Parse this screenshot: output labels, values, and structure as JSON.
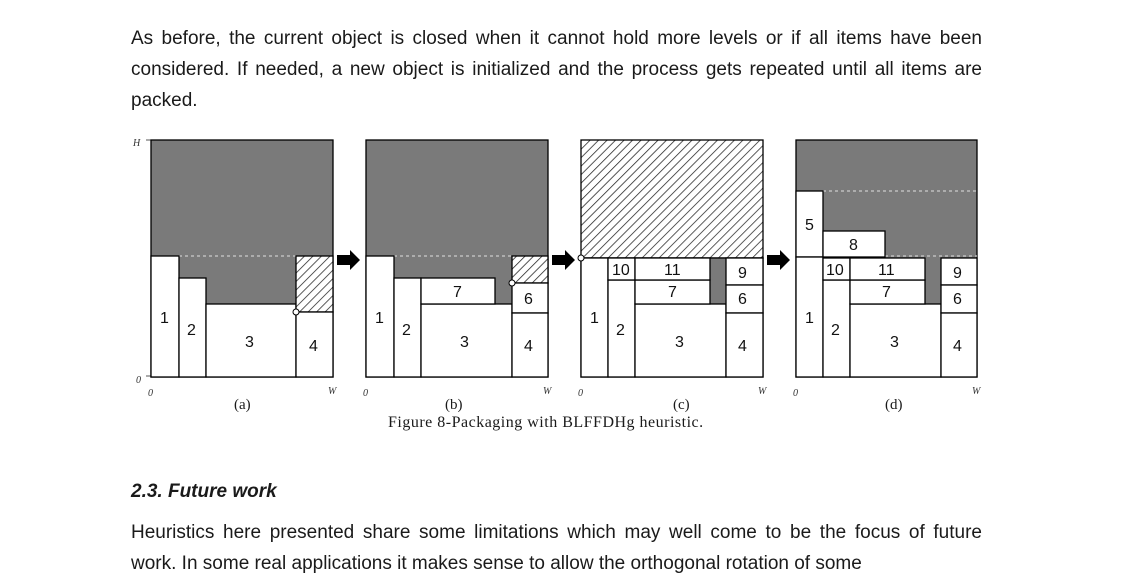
{
  "text": {
    "para1": "As before, the current object is closed when it cannot hold more levels or if all items have been considered. If needed, a new object is initialized and the process gets repeated until all items are packed.",
    "heading": "2.3. Future work",
    "para2": "Heuristics here presented share some limitations which may well come to be the focus of future work. In some real applications it makes sense to allow the orthogonal rotation of some"
  },
  "figure": {
    "caption": "Figure 8-Packaging with BLFFDHg heuristic.",
    "sublabels": [
      "(a)",
      "(b)",
      "(c)",
      "(d)"
    ],
    "axis": {
      "H": "H",
      "zero": "0",
      "W": "W"
    },
    "items": {
      "a": [
        "1",
        "2",
        "3",
        "4"
      ],
      "b": [
        "1",
        "2",
        "3",
        "4",
        "7",
        "6"
      ],
      "c": [
        "1",
        "2",
        "3",
        "4",
        "7",
        "6",
        "10",
        "11",
        "9"
      ],
      "d": [
        "1",
        "2",
        "3",
        "4",
        "7",
        "6",
        "10",
        "11",
        "9",
        "5",
        "8"
      ]
    },
    "colors": {
      "filled": "#7a7a7a",
      "item": "#ffffff",
      "outline": "#000000"
    }
  }
}
